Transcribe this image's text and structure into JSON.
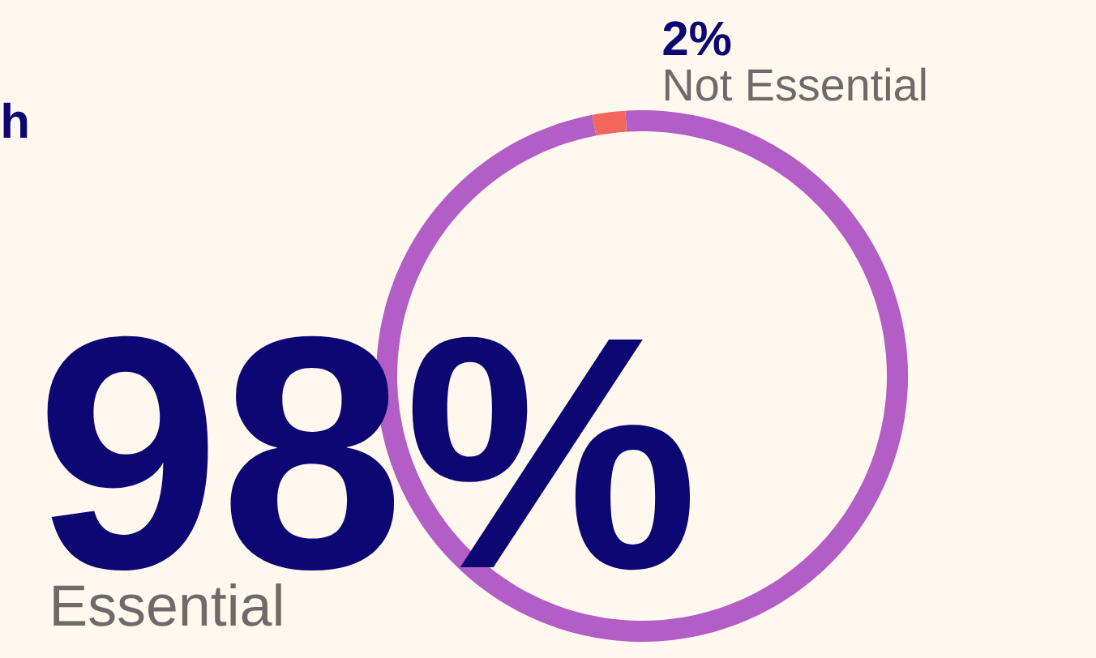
{
  "chart_data": {
    "type": "donut",
    "title": "h",
    "categories": [
      "Essential",
      "Not Essential"
    ],
    "values": [
      98,
      2
    ],
    "colors": [
      "#b25ec6",
      "#f4665a"
    ],
    "value_labels": [
      "98%",
      "2%"
    ]
  }
}
